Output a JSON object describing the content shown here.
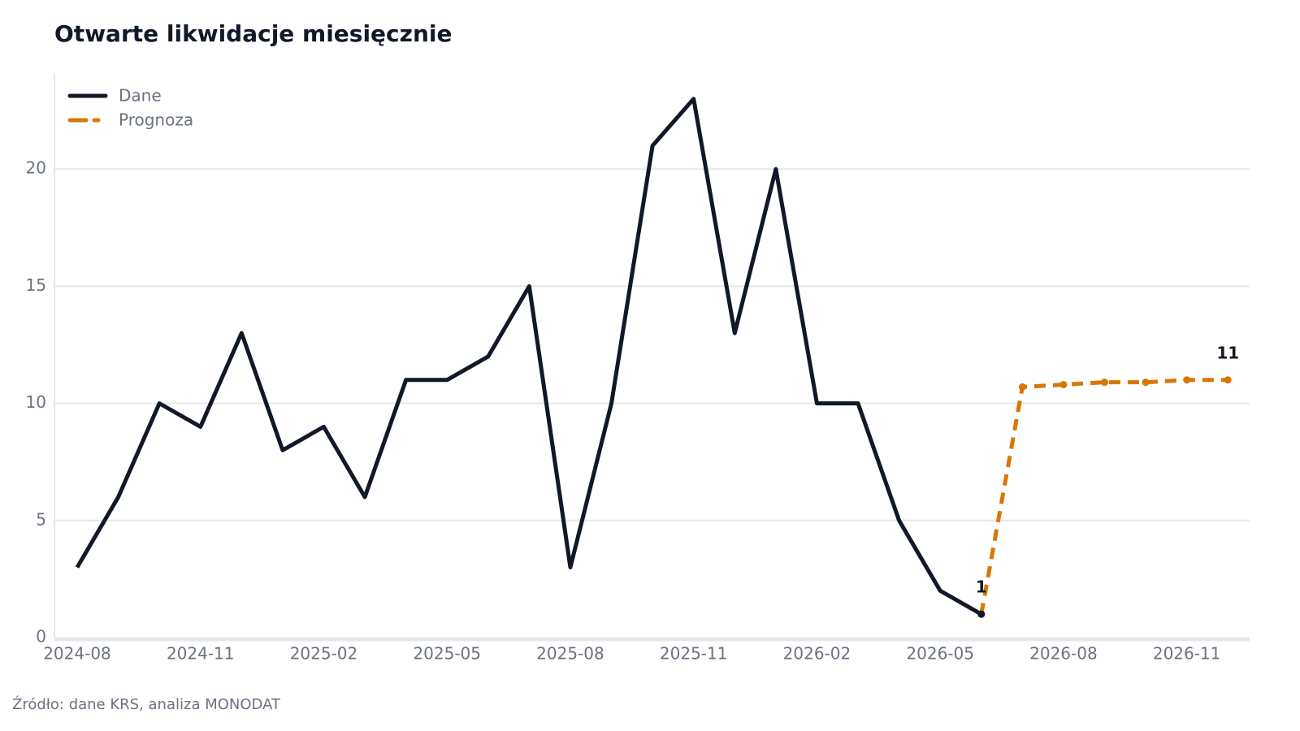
{
  "chart_data": {
    "type": "line",
    "title": "Otwarte likwidacje miesięcznie",
    "source": "Źródło: dane KRS, analiza MONODAT",
    "x": [
      "2024-08",
      "2024-09",
      "2024-10",
      "2024-11",
      "2024-12",
      "2025-01",
      "2025-02",
      "2025-03",
      "2025-04",
      "2025-05",
      "2025-06",
      "2025-07",
      "2025-08",
      "2025-09",
      "2025-10",
      "2025-11",
      "2025-12",
      "2026-01",
      "2026-02",
      "2026-03",
      "2026-04",
      "2026-05",
      "2026-06",
      "2026-07",
      "2026-08",
      "2026-09",
      "2026-10",
      "2026-11",
      "2026-12"
    ],
    "series": [
      {
        "name": "Prognoza",
        "color": "#d97706",
        "dashed": true,
        "markers": true,
        "values": [
          null,
          null,
          null,
          null,
          null,
          null,
          null,
          null,
          null,
          null,
          null,
          null,
          null,
          null,
          null,
          null,
          null,
          null,
          null,
          null,
          null,
          null,
          1,
          10.7,
          10.8,
          10.9,
          10.9,
          11.0,
          11.0
        ],
        "value_labels": [
          null,
          null,
          null,
          null,
          null,
          null,
          null,
          null,
          null,
          null,
          null,
          null,
          null,
          null,
          null,
          null,
          null,
          null,
          null,
          null,
          null,
          null,
          null,
          null,
          null,
          null,
          null,
          null,
          "11"
        ]
      },
      {
        "name": "Dane",
        "color": "#111827",
        "dashed": false,
        "markers": false,
        "values": [
          3,
          6,
          10,
          9,
          13,
          8,
          9,
          6,
          11,
          11,
          12,
          15,
          3,
          10,
          21,
          23,
          13,
          20,
          10,
          10,
          5,
          2,
          1,
          null,
          null,
          null,
          null,
          null,
          null
        ],
        "value_labels": [
          null,
          null,
          null,
          null,
          null,
          null,
          null,
          null,
          null,
          null,
          null,
          null,
          null,
          null,
          null,
          null,
          null,
          null,
          null,
          null,
          null,
          null,
          "1",
          null,
          null,
          null,
          null,
          null,
          null
        ]
      }
    ],
    "legend_order": [
      1,
      0
    ],
    "ylim": [
      0,
      24.1
    ],
    "yticks": [
      0,
      5,
      10,
      15,
      20
    ],
    "xticks": [
      "2024-08",
      "2024-11",
      "2025-02",
      "2025-05",
      "2025-08",
      "2025-11",
      "2026-02",
      "2026-05",
      "2026-08",
      "2026-11"
    ],
    "grid": true
  }
}
